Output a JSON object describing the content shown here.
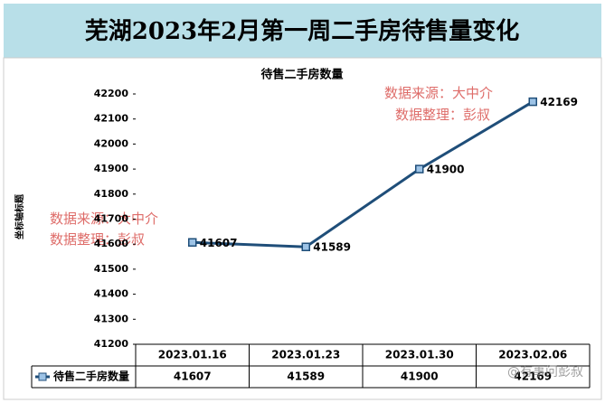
{
  "chart_data": {
    "type": "line",
    "banner": "芜湖2023年2月第一周二手房待售量变化",
    "title": "待售二手房数量",
    "y_label": "坐标轴标题",
    "categories": [
      "2023.01.16",
      "2023.01.23",
      "2023.01.30",
      "2023.02.06"
    ],
    "series": [
      {
        "name": "待售二手房数量",
        "color": "#1f4e79",
        "values": [
          41607,
          41589,
          41900,
          42169
        ]
      }
    ],
    "ylim": [
      41200,
      42200
    ],
    "yticks": [
      41200,
      41300,
      41400,
      41500,
      41600,
      41700,
      41800,
      41900,
      42000,
      42100,
      42200
    ],
    "data_table": true,
    "annotations": [
      "数据来源：大中介",
      "数据整理：彭叔",
      "数据来源：大中介",
      "数据整理：彭叔",
      "@有事问彭叔"
    ]
  }
}
